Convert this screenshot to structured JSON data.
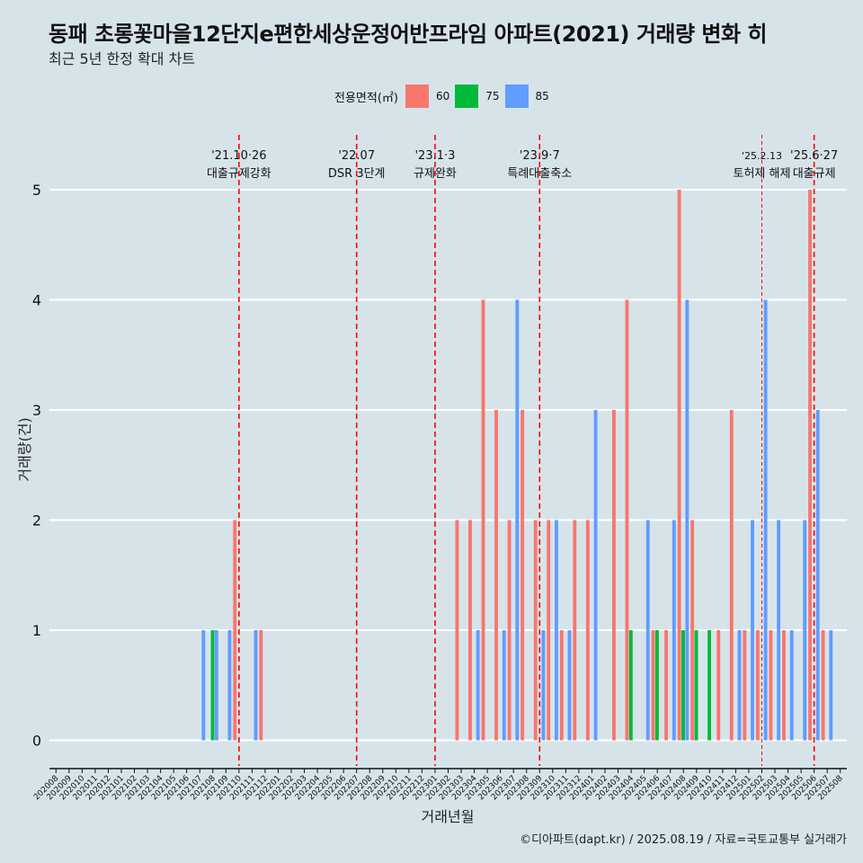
{
  "title": "동패 초롱꽃마을12단지e편한세상운정어반프라임 아파트(2021) 거래량 변화 히",
  "subtitle": "최근 5년 한정 확대 차트",
  "footer": "©디아파트(dapt.kr) / 2025.08.19 / 자료=국토교통부 실거래가",
  "colors": {
    "s60": "#f8766d",
    "s75": "#00ba38",
    "s85": "#619cff",
    "event": "#ff0000",
    "background": "#d6e4ea"
  },
  "chart_data": {
    "type": "bar",
    "title": "동패 초롱꽃마을12단지e편한세상운정어반프라임 아파트(2021) 거래량 변화 히",
    "subtitle": "최근 5년 한정 확대 차트",
    "xlabel": "거래년월",
    "ylabel": "거래량(건)",
    "ylim": [
      -0.2,
      5.5
    ],
    "yticks": [
      0,
      1,
      2,
      3,
      4,
      5
    ],
    "grid": true,
    "legend_position": "top",
    "legend_title": "전용면적(㎡)",
    "categories": [
      "202008",
      "202009",
      "202010",
      "202011",
      "202012",
      "202101",
      "202102",
      "202103",
      "202104",
      "202105",
      "202106",
      "202107",
      "202108",
      "202109",
      "202110",
      "202111",
      "202112",
      "202201",
      "202202",
      "202203",
      "202204",
      "202205",
      "202206",
      "202207",
      "202208",
      "202209",
      "202210",
      "202211",
      "202212",
      "202301",
      "202302",
      "202303",
      "202304",
      "202305",
      "202306",
      "202307",
      "202308",
      "202309",
      "202310",
      "202311",
      "202312",
      "202401",
      "202402",
      "202403",
      "202404",
      "202405",
      "202406",
      "202407",
      "202408",
      "202409",
      "202410",
      "202411",
      "202412",
      "202501",
      "202502",
      "202503",
      "202504",
      "202505",
      "202506",
      "202507",
      "202508"
    ],
    "series": [
      {
        "name": "60",
        "color": "#f8766d",
        "values": [
          0,
          0,
          0,
          0,
          0,
          0,
          0,
          0,
          0,
          0,
          0,
          0,
          0,
          0,
          2,
          0,
          1,
          0,
          0,
          0,
          0,
          0,
          0,
          0,
          0,
          0,
          0,
          0,
          0,
          0,
          0,
          2,
          2,
          4,
          3,
          2,
          3,
          2,
          2,
          1,
          2,
          2,
          0,
          3,
          4,
          0,
          1,
          1,
          5,
          2,
          0,
          1,
          3,
          1,
          1,
          1,
          1,
          0,
          5,
          1,
          0
        ]
      },
      {
        "name": "75",
        "color": "#00ba38",
        "values": [
          0,
          0,
          0,
          0,
          0,
          0,
          0,
          0,
          0,
          0,
          0,
          0,
          1,
          0,
          0,
          0,
          0,
          0,
          0,
          0,
          0,
          0,
          0,
          0,
          0,
          0,
          0,
          0,
          0,
          0,
          0,
          0,
          0,
          0,
          0,
          0,
          0,
          0,
          0,
          0,
          0,
          0,
          0,
          0,
          1,
          0,
          1,
          0,
          1,
          1,
          1,
          0,
          0,
          0,
          0,
          0,
          0,
          0,
          0,
          0,
          0
        ]
      },
      {
        "name": "85",
        "color": "#619cff",
        "values": [
          0,
          0,
          0,
          0,
          0,
          0,
          0,
          0,
          0,
          0,
          0,
          1,
          1,
          1,
          0,
          1,
          0,
          0,
          0,
          0,
          0,
          0,
          0,
          0,
          0,
          0,
          0,
          0,
          0,
          0,
          0,
          0,
          1,
          0,
          1,
          4,
          0,
          1,
          2,
          1,
          0,
          3,
          0,
          0,
          0,
          2,
          0,
          2,
          4,
          0,
          0,
          0,
          1,
          2,
          4,
          2,
          1,
          2,
          3,
          1,
          0
        ]
      }
    ],
    "events": [
      {
        "date": "'21.10·26",
        "label": "대출규제강화",
        "category": "202110",
        "style": "thick"
      },
      {
        "date": "'22.07",
        "label": "DSR 3단계",
        "category": "202207",
        "style": "thick"
      },
      {
        "date": "'23.1·3",
        "label": "규제완화",
        "category": "202301",
        "style": "thick"
      },
      {
        "date": "'23.9·7",
        "label": "특례대출축소",
        "category": "202309",
        "style": "thick"
      },
      {
        "date": "'25.2.13",
        "label": "토허제 해제",
        "category": "202502",
        "style": "thin"
      },
      {
        "date": "'25.6·27",
        "label": "대출규제",
        "category": "202506",
        "style": "thick"
      }
    ]
  }
}
